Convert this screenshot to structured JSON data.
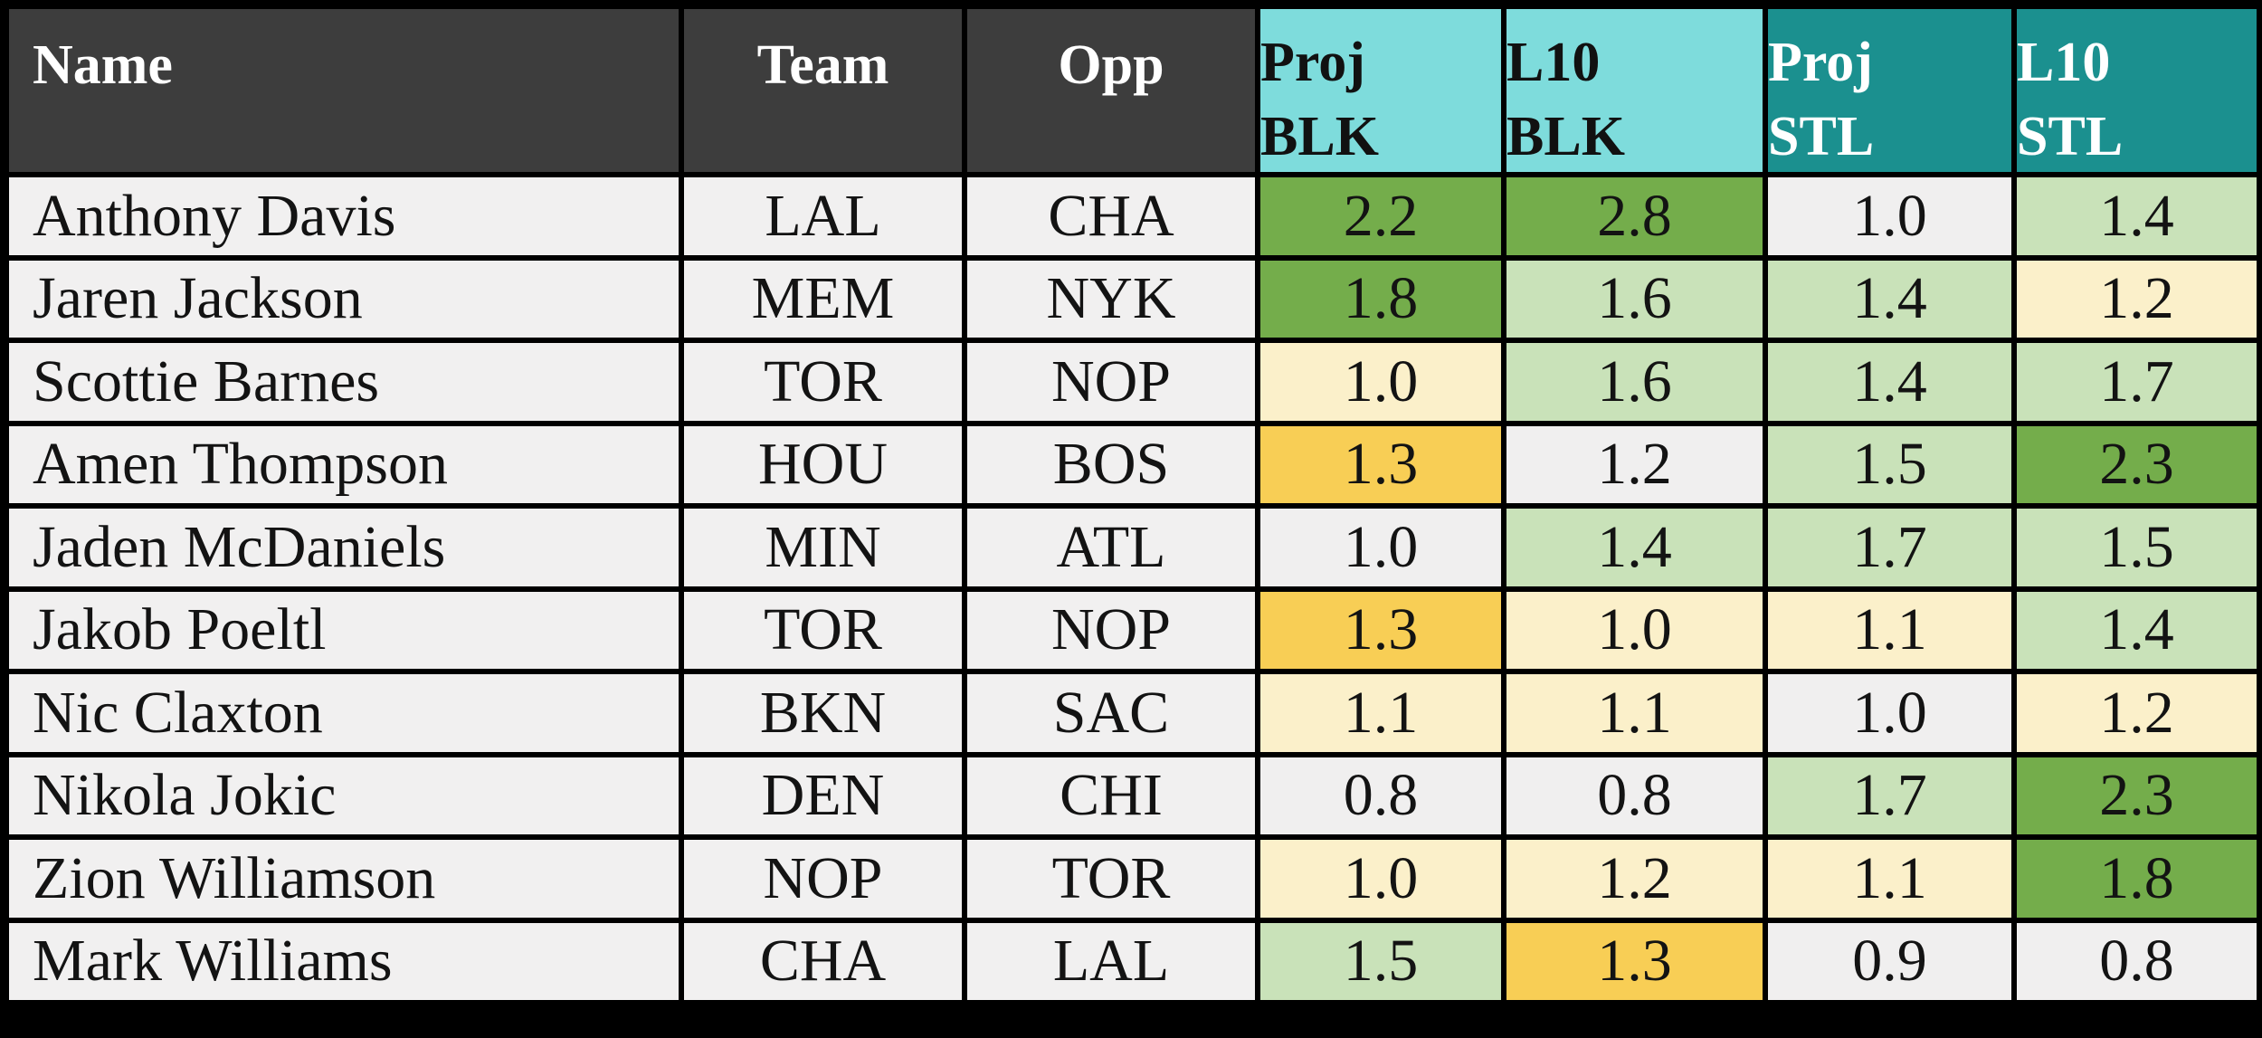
{
  "colors": {
    "page_background": "#000000",
    "grid_line": "#000000",
    "header_bg": "#3d3d3d",
    "header_text": "#ffffff",
    "blk_header_bg": "#7edcdc",
    "blk_header_text": "#111111",
    "stl_header_bg": "#1b908f",
    "stl_header_text": "#ffffff",
    "row_bg": "#f1f0f0",
    "tones": {
      "great": "#74ad4b",
      "good": "#c9e2b9",
      "ok": "#fbf0ca",
      "warn": "#f8ce55",
      "neutral": "#f0efef"
    }
  },
  "table": {
    "columns": [
      {
        "id": "name",
        "label": "Name"
      },
      {
        "id": "team",
        "label": "Team"
      },
      {
        "id": "opp",
        "label": "Opp"
      },
      {
        "id": "proj_blk",
        "lines": [
          "Proj",
          "BLK"
        ]
      },
      {
        "id": "l10_blk",
        "lines": [
          "L10",
          "BLK"
        ]
      },
      {
        "id": "proj_stl",
        "lines": [
          "Proj",
          "STL"
        ]
      },
      {
        "id": "l10_stl",
        "lines": [
          "L10",
          "STL"
        ]
      }
    ],
    "rows": [
      {
        "name": "Anthony Davis",
        "team": "LAL",
        "opp": "CHA",
        "stats": [
          {
            "value": "2.2",
            "tone": "great"
          },
          {
            "value": "2.8",
            "tone": "great"
          },
          {
            "value": "1.0",
            "tone": "neutral"
          },
          {
            "value": "1.4",
            "tone": "good"
          }
        ]
      },
      {
        "name": "Jaren Jackson",
        "team": "MEM",
        "opp": "NYK",
        "stats": [
          {
            "value": "1.8",
            "tone": "great"
          },
          {
            "value": "1.6",
            "tone": "good"
          },
          {
            "value": "1.4",
            "tone": "good"
          },
          {
            "value": "1.2",
            "tone": "ok"
          }
        ]
      },
      {
        "name": "Scottie Barnes",
        "team": "TOR",
        "opp": "NOP",
        "stats": [
          {
            "value": "1.0",
            "tone": "ok"
          },
          {
            "value": "1.6",
            "tone": "good"
          },
          {
            "value": "1.4",
            "tone": "good"
          },
          {
            "value": "1.7",
            "tone": "good"
          }
        ]
      },
      {
        "name": "Amen Thompson",
        "team": "HOU",
        "opp": "BOS",
        "stats": [
          {
            "value": "1.3",
            "tone": "warn"
          },
          {
            "value": "1.2",
            "tone": "neutral"
          },
          {
            "value": "1.5",
            "tone": "good"
          },
          {
            "value": "2.3",
            "tone": "great"
          }
        ]
      },
      {
        "name": "Jaden McDaniels",
        "team": "MIN",
        "opp": "ATL",
        "stats": [
          {
            "value": "1.0",
            "tone": "neutral"
          },
          {
            "value": "1.4",
            "tone": "good"
          },
          {
            "value": "1.7",
            "tone": "good"
          },
          {
            "value": "1.5",
            "tone": "good"
          }
        ]
      },
      {
        "name": "Jakob Poeltl",
        "team": "TOR",
        "opp": "NOP",
        "stats": [
          {
            "value": "1.3",
            "tone": "warn"
          },
          {
            "value": "1.0",
            "tone": "ok"
          },
          {
            "value": "1.1",
            "tone": "ok"
          },
          {
            "value": "1.4",
            "tone": "good"
          }
        ]
      },
      {
        "name": "Nic Claxton",
        "team": "BKN",
        "opp": "SAC",
        "stats": [
          {
            "value": "1.1",
            "tone": "ok"
          },
          {
            "value": "1.1",
            "tone": "ok"
          },
          {
            "value": "1.0",
            "tone": "neutral"
          },
          {
            "value": "1.2",
            "tone": "ok"
          }
        ]
      },
      {
        "name": "Nikola Jokic",
        "team": "DEN",
        "opp": "CHI",
        "stats": [
          {
            "value": "0.8",
            "tone": "neutral"
          },
          {
            "value": "0.8",
            "tone": "neutral"
          },
          {
            "value": "1.7",
            "tone": "good"
          },
          {
            "value": "2.3",
            "tone": "great"
          }
        ]
      },
      {
        "name": "Zion Williamson",
        "team": "NOP",
        "opp": "TOR",
        "stats": [
          {
            "value": "1.0",
            "tone": "ok"
          },
          {
            "value": "1.2",
            "tone": "ok"
          },
          {
            "value": "1.1",
            "tone": "ok"
          },
          {
            "value": "1.8",
            "tone": "great"
          }
        ]
      },
      {
        "name": "Mark Williams",
        "team": "CHA",
        "opp": "LAL",
        "stats": [
          {
            "value": "1.5",
            "tone": "good"
          },
          {
            "value": "1.3",
            "tone": "warn"
          },
          {
            "value": "0.9",
            "tone": "neutral"
          },
          {
            "value": "0.8",
            "tone": "neutral"
          }
        ]
      }
    ]
  },
  "chart_data": {
    "type": "table",
    "title": "",
    "columns": [
      "Name",
      "Team",
      "Opp",
      "Proj BLK",
      "L10 BLK",
      "Proj STL",
      "L10 STL"
    ],
    "rows": [
      [
        "Anthony Davis",
        "LAL",
        "CHA",
        2.2,
        2.8,
        1.0,
        1.4
      ],
      [
        "Jaren Jackson",
        "MEM",
        "NYK",
        1.8,
        1.6,
        1.4,
        1.2
      ],
      [
        "Scottie Barnes",
        "TOR",
        "NOP",
        1.0,
        1.6,
        1.4,
        1.7
      ],
      [
        "Amen Thompson",
        "HOU",
        "BOS",
        1.3,
        1.2,
        1.5,
        2.3
      ],
      [
        "Jaden McDaniels",
        "MIN",
        "ATL",
        1.0,
        1.4,
        1.7,
        1.5
      ],
      [
        "Jakob Poeltl",
        "TOR",
        "NOP",
        1.3,
        1.0,
        1.1,
        1.4
      ],
      [
        "Nic Claxton",
        "BKN",
        "SAC",
        1.1,
        1.1,
        1.0,
        1.2
      ],
      [
        "Nikola Jokic",
        "DEN",
        "CHI",
        0.8,
        0.8,
        1.7,
        2.3
      ],
      [
        "Zion Williamson",
        "NOP",
        "TOR",
        1.0,
        1.2,
        1.1,
        1.8
      ],
      [
        "Mark Williams",
        "CHA",
        "LAL",
        1.5,
        1.3,
        0.9,
        0.8
      ]
    ],
    "legend_note": "cell shading encodes stat quality: dark green = best, light green = good, cream = average, gold = caution, gray = neutral"
  }
}
